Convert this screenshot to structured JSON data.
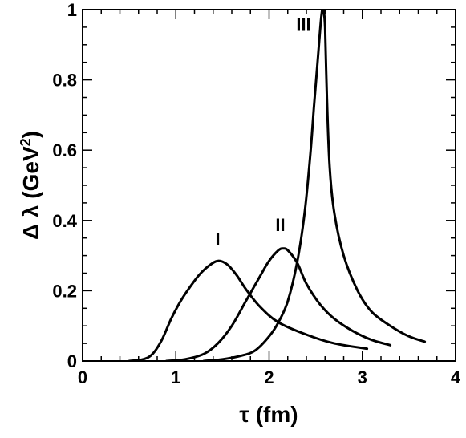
{
  "chart_data": {
    "type": "line",
    "title": "",
    "xlabel": "τ (fm)",
    "ylabel_main": "Δ λ (GeV",
    "ylabel_sup": "2",
    "ylabel_close": ")",
    "xlim": [
      0,
      4
    ],
    "ylim": [
      0,
      1
    ],
    "x_ticks": [
      "0",
      "1",
      "2",
      "3",
      "4"
    ],
    "y_ticks": [
      "0",
      "0.2",
      "0.4",
      "0.6",
      "0.8",
      "1"
    ],
    "grid": false,
    "legend": "none",
    "series": [
      {
        "name": "I",
        "x": [
          0.5,
          0.65,
          0.75,
          0.85,
          0.95,
          1.05,
          1.15,
          1.25,
          1.35,
          1.45,
          1.55,
          1.65,
          1.75,
          1.9,
          2.1,
          2.4,
          2.7,
          3.05
        ],
        "y": [
          0.0,
          0.005,
          0.02,
          0.06,
          0.12,
          0.17,
          0.21,
          0.245,
          0.27,
          0.285,
          0.275,
          0.245,
          0.205,
          0.155,
          0.11,
          0.075,
          0.05,
          0.035
        ]
      },
      {
        "name": "II",
        "x": [
          0.9,
          1.1,
          1.3,
          1.45,
          1.6,
          1.75,
          1.9,
          2.0,
          2.1,
          2.15,
          2.2,
          2.3,
          2.4,
          2.55,
          2.7,
          2.9,
          3.1,
          3.3
        ],
        "y": [
          0.0,
          0.005,
          0.02,
          0.05,
          0.1,
          0.17,
          0.24,
          0.285,
          0.315,
          0.32,
          0.315,
          0.28,
          0.22,
          0.16,
          0.12,
          0.085,
          0.06,
          0.045
        ]
      },
      {
        "name": "III",
        "x": [
          1.3,
          1.5,
          1.7,
          1.85,
          2.0,
          2.1,
          2.2,
          2.3,
          2.38,
          2.44,
          2.48,
          2.52,
          2.56,
          2.58,
          2.6,
          2.62,
          2.65,
          2.7,
          2.8,
          2.95,
          3.1,
          3.3,
          3.5,
          3.67
        ],
        "y": [
          0.0,
          0.005,
          0.015,
          0.03,
          0.07,
          0.11,
          0.17,
          0.28,
          0.42,
          0.58,
          0.72,
          0.85,
          0.98,
          1.0,
          0.95,
          0.75,
          0.55,
          0.42,
          0.3,
          0.2,
          0.14,
          0.1,
          0.07,
          0.055
        ]
      }
    ],
    "curve_labels": [
      {
        "text": "I",
        "x": 1.45,
        "y": 0.33
      },
      {
        "text": "II",
        "x": 2.12,
        "y": 0.37
      },
      {
        "text": "III",
        "x": 2.37,
        "y": 0.94
      }
    ]
  }
}
